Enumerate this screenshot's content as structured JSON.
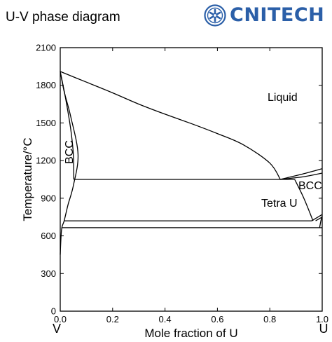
{
  "header": {
    "title": "U-V phase diagram",
    "brand": "CNITECH",
    "brand_color": "#2b5fa8",
    "logo_icon": "cnitech-emblem-icon"
  },
  "chart_data": {
    "type": "phase-diagram",
    "title": "",
    "xlabel": "Mole fraction of U",
    "ylabel": "Temperature/°C",
    "xlim": [
      0.0,
      1.0
    ],
    "ylim": [
      0,
      2100
    ],
    "x_ticks": [
      "0.0",
      "0.2",
      "0.4",
      "0.6",
      "0.8",
      "1.0"
    ],
    "y_ticks": [
      "0",
      "300",
      "600",
      "900",
      "1200",
      "1500",
      "1800",
      "2100"
    ],
    "end_labels": {
      "left": "V",
      "right": "U"
    },
    "phase_labels": [
      "Liquid",
      "BCC",
      "BCC",
      "Tetra U"
    ],
    "grid": false,
    "curves": [
      {
        "points": [
          [
            0.0,
            1910
          ],
          [
            0.1,
            1825
          ],
          [
            0.2,
            1740
          ],
          [
            0.3,
            1650
          ],
          [
            0.4,
            1570
          ],
          [
            0.5,
            1495
          ],
          [
            0.6,
            1415
          ],
          [
            0.7,
            1325
          ],
          [
            0.8,
            1180
          ],
          [
            0.84,
            1050
          ]
        ]
      },
      {
        "points": [
          [
            0.0,
            1910
          ],
          [
            0.02,
            1700
          ],
          [
            0.04,
            1450
          ],
          [
            0.05,
            1250
          ],
          [
            0.052,
            1050
          ]
        ]
      },
      {
        "points": [
          [
            0.0,
            1910
          ],
          [
            0.015,
            1750
          ],
          [
            0.04,
            1550
          ],
          [
            0.068,
            1250
          ],
          [
            0.05,
            1000
          ],
          [
            0.03,
            850
          ],
          [
            0.015,
            720
          ],
          [
            0.005,
            650
          ],
          [
            0.0,
            450
          ]
        ]
      },
      {
        "points": [
          [
            0.052,
            1050
          ],
          [
            0.895,
            1050
          ]
        ]
      },
      {
        "points": [
          [
            0.84,
            1050
          ],
          [
            0.92,
            1090
          ],
          [
            1.0,
            1135
          ]
        ]
      },
      {
        "points": [
          [
            0.84,
            1050
          ],
          [
            0.93,
            1072
          ],
          [
            1.0,
            1100
          ]
        ]
      },
      {
        "points": [
          [
            0.895,
            1050
          ],
          [
            0.93,
            900
          ],
          [
            0.965,
            720
          ]
        ]
      },
      {
        "points": [
          [
            0.015,
            720
          ],
          [
            0.96,
            720
          ]
        ]
      },
      {
        "points": [
          [
            0.96,
            720
          ],
          [
            1.0,
            770
          ]
        ]
      },
      {
        "points": [
          [
            0.975,
            720
          ],
          [
            1.0,
            750
          ]
        ]
      },
      {
        "points": [
          [
            0.005,
            665
          ],
          [
            1.0,
            665
          ]
        ]
      },
      {
        "points": [
          [
            0.99,
            665
          ],
          [
            0.995,
            720
          ],
          [
            1.0,
            760
          ]
        ]
      }
    ]
  }
}
